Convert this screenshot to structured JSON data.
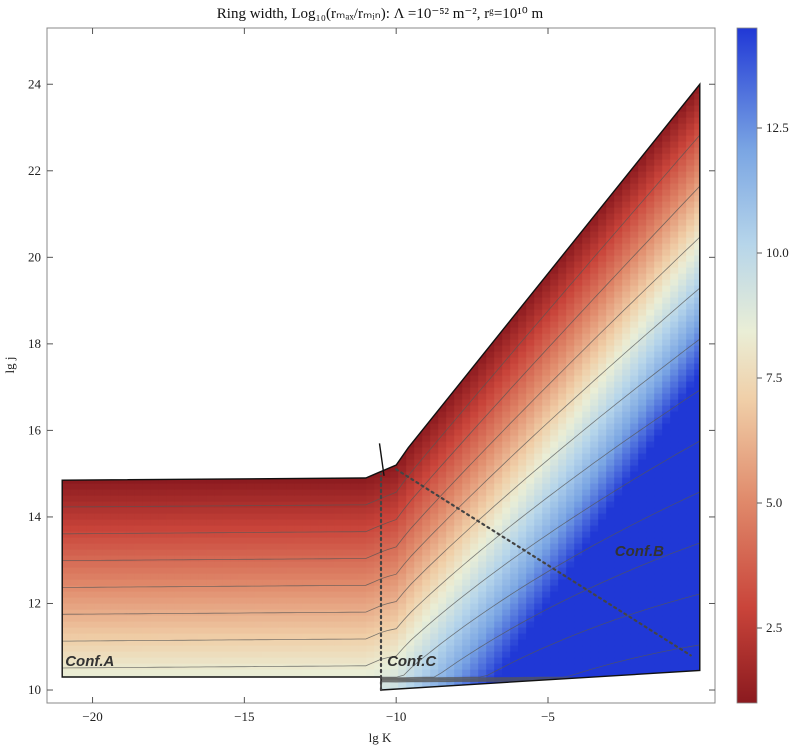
{
  "chart_data": {
    "type": "heatmap",
    "title": "Ring width, Log₁₀(rₘₐₓ/rₘᵢₙ): Λ =10⁻⁵² m⁻², rᵍ=10¹⁰ m",
    "xlabel": "lg K",
    "ylabel": "lg j",
    "xlim": [
      -21.5,
      0.5
    ],
    "ylim": [
      9.7,
      25.3
    ],
    "x_ticks": [
      -20,
      -15,
      -10,
      -5
    ],
    "y_ticks": [
      10,
      12,
      14,
      16,
      18,
      20,
      22,
      24
    ],
    "colorbar": {
      "range": [
        1,
        14.5
      ],
      "ticks": [
        2.5,
        5.0,
        7.5,
        10.0,
        12.5
      ],
      "tick_labels": [
        "2.5",
        "5.0",
        "7.5",
        "10.0",
        "12.5"
      ],
      "colormap": "RdYlBu (reversed)",
      "low_color": "#8b1a1f",
      "mid_color": "#f3e6c2",
      "high_color": "#2038d6"
    },
    "region": {
      "upper_boundary": [
        [
          -21,
          14.85
        ],
        [
          -11,
          14.9
        ],
        [
          -10,
          15.2
        ],
        [
          -9.6,
          15.6
        ],
        [
          0,
          24.0
        ]
      ],
      "lower_boundary": [
        [
          -21,
          10.3
        ],
        [
          -10.5,
          10.3
        ],
        [
          -10.5,
          10.0
        ],
        [
          0,
          10.45
        ]
      ],
      "right_edge_x": 0
    },
    "dotted_lines": [
      {
        "from": [
          -10.5,
          10.0
        ],
        "to": [
          -10.5,
          15.0
        ]
      },
      {
        "from": [
          -10.0,
          15.1
        ],
        "to": [
          -0.3,
          10.8
        ]
      }
    ],
    "annotations": [
      {
        "text": "Conf.A",
        "x": -20.9,
        "y": 10.55
      },
      {
        "text": "Conf.C",
        "x": -10.3,
        "y": 10.55
      },
      {
        "text": "Conf.B",
        "x": -2.8,
        "y": 13.1
      }
    ]
  }
}
